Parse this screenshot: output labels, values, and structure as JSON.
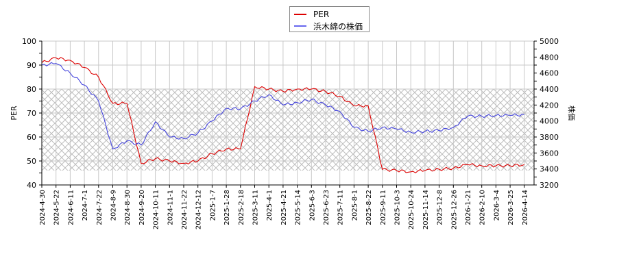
{
  "legend": {
    "items": [
      {
        "label": "PER",
        "color": "#dd0000"
      },
      {
        "label": "浜木綿の株価",
        "color": "#4444dd"
      }
    ]
  },
  "axes": {
    "left_title": "PER",
    "right_title": "株価",
    "left_ticks": [
      "100",
      "90",
      "80",
      "70",
      "60",
      "50",
      "40"
    ],
    "right_ticks": [
      "5000",
      "4800",
      "4600",
      "4400",
      "4200",
      "4000",
      "3800",
      "3600",
      "3400",
      "3200"
    ]
  },
  "chart_data": {
    "type": "line",
    "title": "",
    "xlabel": "",
    "ylabel": "PER",
    "ylabel_right": "株価",
    "ylim": [
      40,
      100
    ],
    "ylim_right": [
      3200,
      5000
    ],
    "grid": true,
    "legend_position": "top-center",
    "shaded_band_per": [
      46,
      80
    ],
    "categories": [
      "2024-4-30",
      "2024-5-22",
      "2024-6-11",
      "2024-7-1",
      "2024-7-22",
      "2024-8-9",
      "2024-8-30",
      "2024-9-20",
      "2024-10-11",
      "2024-11-1",
      "2024-11-22",
      "2024-12-12",
      "2025-1-7",
      "2025-1-28",
      "2025-2-18",
      "2025-3-11",
      "2025-4-1",
      "2025-4-21",
      "2025-5-14",
      "2025-6-3",
      "2025-6-23",
      "2025-7-11",
      "2025-8-1",
      "2025-8-22",
      "2025-9-11",
      "2025-10-3",
      "2025-10-24",
      "2025-11-14",
      "2025-12-8",
      "2025-12-26",
      "2026-1-21",
      "2026-2-10",
      "2026-3-4",
      "2026-3-25",
      "2026-4-14"
    ],
    "series": [
      {
        "name": "PER",
        "axis": "left",
        "color": "#dd0000",
        "values": [
          91,
          93,
          92,
          89,
          85,
          74,
          74,
          49,
          51,
          50,
          49,
          50,
          53,
          55,
          55,
          81,
          80,
          79,
          80,
          80,
          79,
          77,
          73,
          73,
          46.5,
          46,
          45.5,
          46,
          46.5,
          47,
          48.5,
          48,
          48,
          48,
          48.5
        ]
      },
      {
        "name": "浜木綿の株価",
        "axis": "right",
        "color": "#4444dd",
        "values": [
          4700,
          4720,
          4600,
          4450,
          4250,
          3650,
          3750,
          3700,
          3990,
          3800,
          3780,
          3850,
          4000,
          4160,
          4150,
          4250,
          4330,
          4200,
          4230,
          4270,
          4200,
          4120,
          3920,
          3870,
          3920,
          3900,
          3860,
          3870,
          3880,
          3920,
          4060,
          4060,
          4070,
          4070,
          4080
        ]
      }
    ]
  }
}
